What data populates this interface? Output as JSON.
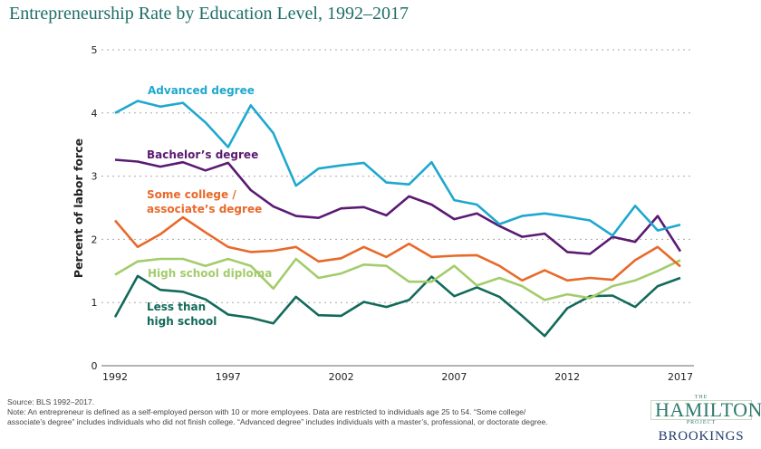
{
  "chart_data": {
    "type": "line",
    "title": "Entrepreneurship Rate by Education Level, 1992–2017",
    "xlabel": "",
    "ylabel": "Percent of labor force",
    "x": [
      1992,
      1993,
      1994,
      1995,
      1996,
      1997,
      1998,
      1999,
      2000,
      2001,
      2002,
      2003,
      2004,
      2005,
      2006,
      2007,
      2008,
      2009,
      2010,
      2011,
      2012,
      2013,
      2014,
      2015,
      2016,
      2017
    ],
    "xticks": [
      "1992",
      "1997",
      "2002",
      "2007",
      "2012",
      "2017"
    ],
    "yticks": [
      "0",
      "1",
      "2",
      "3",
      "4",
      "5"
    ],
    "ylim": [
      0,
      5
    ],
    "xlim": [
      1992,
      2017
    ],
    "grid": "horizontal-dotted",
    "legend": "inline-labels",
    "series": [
      {
        "name": "Advanced degree",
        "label_lines": [
          "Advanced degree"
        ],
        "color": "#1fa8cf",
        "values": [
          4.0,
          4.19,
          4.1,
          4.16,
          3.85,
          3.46,
          4.12,
          3.68,
          2.85,
          3.12,
          3.17,
          3.21,
          2.9,
          2.87,
          3.22,
          2.62,
          2.55,
          2.24,
          2.37,
          2.41,
          2.36,
          2.3,
          2.06,
          2.53,
          2.14,
          2.23
        ]
      },
      {
        "name": "Bachelor’s degree",
        "label_lines": [
          "Bachelor’s degree"
        ],
        "color": "#5b1a72",
        "values": [
          3.26,
          3.23,
          3.15,
          3.22,
          3.09,
          3.21,
          2.78,
          2.52,
          2.37,
          2.34,
          2.49,
          2.51,
          2.38,
          2.68,
          2.55,
          2.32,
          2.41,
          2.21,
          2.04,
          2.09,
          1.8,
          1.77,
          2.04,
          1.96,
          2.37,
          1.81
        ]
      },
      {
        "name": "Some college / associate’s degree",
        "label_lines": [
          "Some college /",
          "associate’s degree"
        ],
        "color": "#e8692a",
        "values": [
          2.3,
          1.88,
          2.08,
          2.35,
          2.11,
          1.88,
          1.8,
          1.82,
          1.88,
          1.65,
          1.7,
          1.88,
          1.72,
          1.93,
          1.72,
          1.74,
          1.75,
          1.58,
          1.35,
          1.51,
          1.35,
          1.39,
          1.36,
          1.67,
          1.88,
          1.57
        ]
      },
      {
        "name": "High school diploma",
        "label_lines": [
          "High school diploma"
        ],
        "color": "#a3cc6b",
        "values": [
          1.44,
          1.65,
          1.69,
          1.69,
          1.58,
          1.69,
          1.58,
          1.22,
          1.69,
          1.39,
          1.46,
          1.6,
          1.58,
          1.33,
          1.33,
          1.58,
          1.27,
          1.39,
          1.26,
          1.04,
          1.13,
          1.07,
          1.26,
          1.35,
          1.5,
          1.67
        ]
      },
      {
        "name": "Less than high school",
        "label_lines": [
          "Less than",
          "high school"
        ],
        "color": "#126a5a",
        "values": [
          0.77,
          1.42,
          1.2,
          1.17,
          1.05,
          0.81,
          0.76,
          0.67,
          1.09,
          0.8,
          0.79,
          1.01,
          0.93,
          1.04,
          1.41,
          1.1,
          1.24,
          1.09,
          0.79,
          0.47,
          0.91,
          1.1,
          1.11,
          0.93,
          1.26,
          1.39
        ]
      }
    ]
  },
  "footer": {
    "source": "Source: BLS 1992–2017.",
    "note_line1": "Note: An entrepreneur is defined as a self-employed person with 10 or more employees. Data are restricted to individuals age 25 to 54. “Some college/",
    "note_line2": "associate’s degree” includes individuals who did not finish college. “Advanced degree” includes individuals with a master’s, professional, or doctorate degree."
  },
  "logo": {
    "the": "THE",
    "hamilton": "HAMILTON",
    "project": "PROJECT",
    "brookings": "BROOKINGS"
  }
}
